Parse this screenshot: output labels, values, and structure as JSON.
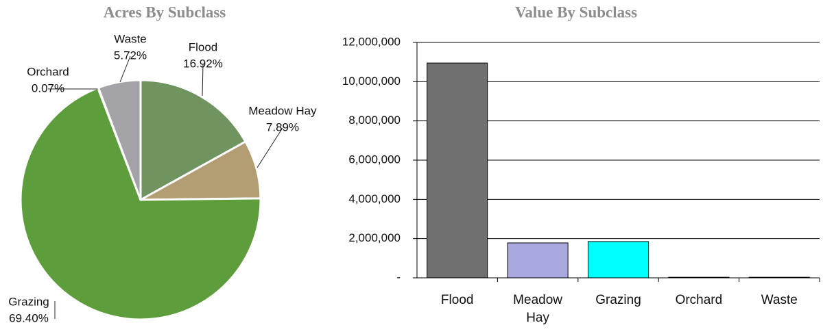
{
  "chart_data": [
    {
      "type": "pie",
      "title": "Acres By Subclass",
      "categories": [
        "Flood",
        "Meadow Hay",
        "Grazing",
        "Orchard",
        "Waste"
      ],
      "values": [
        16.92,
        7.89,
        69.4,
        0.07,
        5.72
      ],
      "value_labels": [
        "16.92%",
        "7.89%",
        "69.40%",
        "0.07%",
        "5.72%"
      ],
      "colors": [
        "#6f9460",
        "#b39d72",
        "#5e9d3c",
        "#8c8c7a",
        "#a3a3a8"
      ]
    },
    {
      "type": "bar",
      "title": "Value By Subclass",
      "categories": [
        "Flood",
        "Meadow Hay",
        "Grazing",
        "Orchard",
        "Waste"
      ],
      "values": [
        10950000,
        1780000,
        1850000,
        30000,
        30000
      ],
      "colors": [
        "#707070",
        "#a9a9e0",
        "#00ffff",
        "#333333",
        "#333333"
      ],
      "ylim": [
        0,
        12000000
      ],
      "yticks": [
        {
          "value": 0,
          "label": "-"
        },
        {
          "value": 2000000,
          "label": "2,000,000"
        },
        {
          "value": 4000000,
          "label": "4,000,000"
        },
        {
          "value": 6000000,
          "label": "6,000,000"
        },
        {
          "value": 8000000,
          "label": "8,000,000"
        },
        {
          "value": 10000000,
          "label": "10,000,000"
        },
        {
          "value": 12000000,
          "label": "12,000,000"
        }
      ],
      "grid": true
    }
  ]
}
